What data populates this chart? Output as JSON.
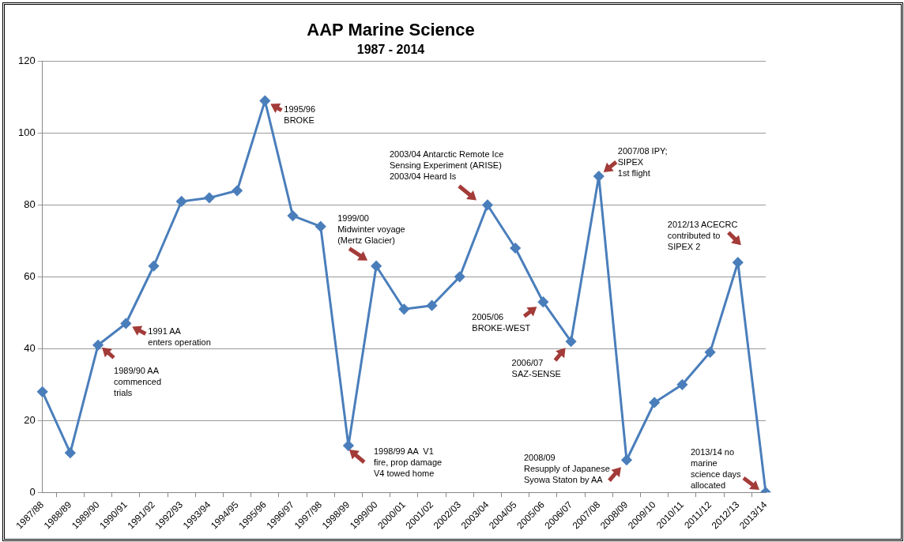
{
  "chart_data": {
    "type": "line",
    "title": "AAP Marine Science",
    "subtitle": "1987 - 2014",
    "categories": [
      "1987/88",
      "1988/89",
      "1989/90",
      "1990/91",
      "1991/92",
      "1992/93",
      "1993/94",
      "1994/95",
      "1995/96",
      "1996/97",
      "1997/98",
      "1998/99",
      "1999/00",
      "2000/01",
      "2001/02",
      "2002/03",
      "2003/04",
      "2004/05",
      "2005/06",
      "2006/07",
      "2007/08",
      "2008/09",
      "2009/10",
      "2010/11",
      "2011/12",
      "2012/13",
      "2013/14"
    ],
    "series": [
      {
        "color": "#4a7ebb",
        "values": [
          28,
          11,
          41,
          47,
          63,
          81,
          82,
          84,
          109,
          77,
          74,
          13,
          63,
          51,
          52,
          60,
          80,
          68,
          53,
          42,
          88,
          9,
          25,
          30,
          39,
          64,
          0
        ]
      }
    ],
    "ylim": [
      0,
      120
    ],
    "yticks": [
      0,
      20,
      40,
      60,
      80,
      100,
      120
    ],
    "grid": "y",
    "legend": false,
    "marker": "diamond",
    "line_style": "solid",
    "annotations": [
      {
        "text": "1989/90 AA\ncommenced\ntrials",
        "x": "1989/90",
        "y": 41
      },
      {
        "text": "1991 AA\nenters operation",
        "x": "1990/91",
        "y": 47
      },
      {
        "text": "1995/96\nBROKE",
        "x": "1995/96",
        "y": 109
      },
      {
        "text": "1998/99 AA  V1\nfire, prop damage\nV4 towed home",
        "x": "1998/99",
        "y": 13
      },
      {
        "text": "1999/00\nMidwinter voyage\n(Mertz Glacier)",
        "x": "1999/00",
        "y": 63
      },
      {
        "text": "2003/04 Antarctic Remote Ice\nSensing Experiment (ARISE)\n2003/04 Heard Is",
        "x": "2003/04",
        "y": 80
      },
      {
        "text": "2005/06\nBROKE-WEST",
        "x": "2005/06",
        "y": 53
      },
      {
        "text": "2006/07\nSAZ-SENSE",
        "x": "2006/07",
        "y": 42
      },
      {
        "text": "2007/08 IPY;\nSIPEX\n1st flight",
        "x": "2007/08",
        "y": 88
      },
      {
        "text": "2008/09\nResupply of Japanese\nSyowa Staton by AA",
        "x": "2008/09",
        "y": 9
      },
      {
        "text": "2012/13 ACECRC\ncontributed to\nSIPEX 2",
        "x": "2012/13",
        "y": 64
      },
      {
        "text": "2013/14 no\nmarine\nscience days\nallocated",
        "x": "2013/14",
        "y": 0
      }
    ]
  }
}
